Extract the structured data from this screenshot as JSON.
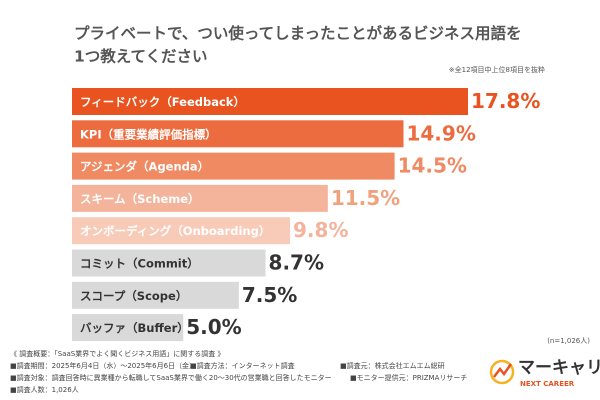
{
  "chart_data": {
    "type": "bar",
    "orientation": "horizontal",
    "title": [
      "プライベートで、つい使ってしまったことがあるビジネス用語を",
      "1つ教えてください"
    ],
    "note": "※全12項目中上位8項目を抜粋",
    "sample_size": "(n=1,026人)",
    "categories": [
      "フィードバック（Feedback）",
      "KPI（重要業績評価指標）",
      "アジェンダ（Agenda）",
      "スキーム（Scheme）",
      "オンボーディング（Onboarding）",
      "コミット（Commit）",
      "スコープ（Scope）",
      "バッファ（Buffer）"
    ],
    "values": [
      17.8,
      14.9,
      14.5,
      11.5,
      9.8,
      8.7,
      7.5,
      5.0
    ],
    "value_labels": [
      "17.8%",
      "14.9%",
      "14.5%",
      "11.5%",
      "9.8%",
      "8.7%",
      "7.5%",
      "5.0%"
    ],
    "colors": [
      "#e8531f",
      "#ec6b3f",
      "#ef8a63",
      "#f4b49b",
      "#f8cbb9",
      "#d9d9d9",
      "#d9d9d9",
      "#d9d9d9"
    ],
    "text_colors": [
      "#ffffff",
      "#ffffff",
      "#ffffff",
      "#ffffff",
      "#ffffff",
      "#333333",
      "#333333",
      "#333333"
    ],
    "label_colors": [
      "#e8531f",
      "#ec6b3f",
      "#ef8a63",
      "#f0a27f",
      "#f4b49b",
      "#333333",
      "#333333",
      "#333333"
    ]
  },
  "survey": {
    "heading": "《 調査概要：「SaaS業界でよく聞くビジネス用語」に関する調査 》",
    "lines": [
      [
        "■調査期間：2025年6月4日（水）～2025年6月6日（金）",
        "■調査方法：インターネット調査",
        "■調査元：株式会社エムエム総研"
      ],
      [
        "■調査対象：調査回答時に異業種から転職してSaaS業界で働く20～30代の営業職と回答したモニター",
        "■モニター提供元：PRIZMAリサーチ"
      ],
      [
        "■調査人数：1,026人"
      ]
    ]
  },
  "logo": {
    "name": "マーキャリ",
    "tagline": "NEXT CAREER"
  }
}
